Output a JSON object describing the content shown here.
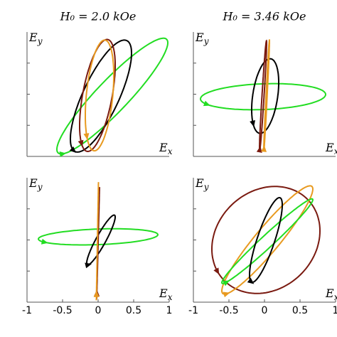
{
  "chart_data": [
    {
      "type": "polarization",
      "title": "H₀ = 2.0 kOe",
      "xlabel": "Ex",
      "ylabel": "Ey",
      "xlim": [
        -1,
        1
      ],
      "ylim": [
        -1,
        1
      ],
      "yticks": [
        -0.5,
        0,
        0.5
      ],
      "series": [
        {
          "color": "#22dd22",
          "x_center": 0.2,
          "y_center": -0.03,
          "x_amplitude": 0.78,
          "y_amplitude": 0.93,
          "phase": 0.4
        },
        {
          "color": "#000000",
          "x_center": 0.04,
          "y_center": -0.03,
          "x_amplitude": 0.43,
          "y_amplitude": 0.9,
          "phase": 0.7
        },
        {
          "color": "#7a1a10",
          "x_center": -0.01,
          "y_center": -0.02,
          "x_amplitude": 0.25,
          "y_amplitude": 0.9,
          "phase": 1.0
        },
        {
          "color": "#e89a20",
          "x_center": 0.02,
          "y_center": -0.02,
          "x_amplitude": 0.2,
          "y_amplitude": 0.89,
          "phase": 1.2
        }
      ]
    },
    {
      "type": "polarization",
      "title": "H₀ = 3.46 kOe",
      "xlabel": "Ex",
      "ylabel": "Ey",
      "xlim": [
        -1,
        1
      ],
      "ylim": [
        -1,
        1
      ],
      "yticks": [
        -0.5,
        0,
        0.5
      ],
      "series": [
        {
          "color": "#22dd22",
          "x_center": -0.02,
          "y_center": -0.04,
          "x_amplitude": 0.88,
          "y_amplitude": 0.21,
          "phase": 1.4
        },
        {
          "color": "#000000",
          "x_center": 0.01,
          "y_center": -0.03,
          "x_amplitude": 0.19,
          "y_amplitude": 0.6,
          "phase": 1.2
        },
        {
          "color": "#7a1a10",
          "x_center": -0.02,
          "y_center": -0.02,
          "x_amplitude": 0.05,
          "y_amplitude": 0.88,
          "phase": 0.3
        },
        {
          "color": "#e89a20",
          "x_center": 0.03,
          "y_center": -0.02,
          "x_amplitude": 0.04,
          "y_amplitude": 0.89,
          "phase": 0.2
        }
      ]
    },
    {
      "type": "polarization",
      "xlabel": "Ex",
      "ylabel": "Ey",
      "xlim": [
        -1,
        1
      ],
      "ylim": [
        -1,
        1
      ],
      "yticks": [
        -0.5,
        0,
        0.5
      ],
      "xticks": [
        -1,
        -0.5,
        0,
        0.5,
        1
      ],
      "series": [
        {
          "color": "#22dd22",
          "x_center": 0.0,
          "y_center": 0.05,
          "x_amplitude": 0.84,
          "y_amplitude": 0.13,
          "phase": 1.3
        },
        {
          "color": "#000000",
          "x_center": 0.04,
          "y_center": 0.0,
          "x_amplitude": 0.2,
          "y_amplitude": 0.4,
          "phase": 0.4
        },
        {
          "color": "#7a1a10",
          "x_center": 0.0,
          "y_center": -0.05,
          "x_amplitude": 0.02,
          "y_amplitude": 0.9,
          "phase": 0
        },
        {
          "color": "#e89a20",
          "x_center": -0.01,
          "y_center": -0.02,
          "x_amplitude": 0.015,
          "y_amplitude": 0.95,
          "phase": 0
        }
      ]
    },
    {
      "type": "polarization",
      "xlabel": "Ex",
      "ylabel": "Ey",
      "xlim": [
        -1,
        1
      ],
      "ylim": [
        -1,
        1
      ],
      "yticks": [
        -0.5,
        0,
        0.5
      ],
      "xticks": [
        -1,
        -0.5,
        0,
        0.5,
        1
      ],
      "series": [
        {
          "color": "#7a1a10",
          "x_center": 0.02,
          "y_center": 0.0,
          "x_amplitude": 0.76,
          "y_amplitude": 0.86,
          "phase": 1.4
        },
        {
          "color": "#e89a20",
          "x_center": 0.04,
          "y_center": 0.0,
          "x_amplitude": 0.64,
          "y_amplitude": 0.87,
          "phase": 0.35
        },
        {
          "color": "#22dd22",
          "x_center": 0.04,
          "y_center": -0.02,
          "x_amplitude": 0.64,
          "y_amplitude": 0.68,
          "phase": 0.2
        },
        {
          "color": "#000000",
          "x_center": 0.02,
          "y_center": 0.0,
          "x_amplitude": 0.23,
          "y_amplitude": 0.68,
          "phase": 0.6
        }
      ]
    }
  ]
}
